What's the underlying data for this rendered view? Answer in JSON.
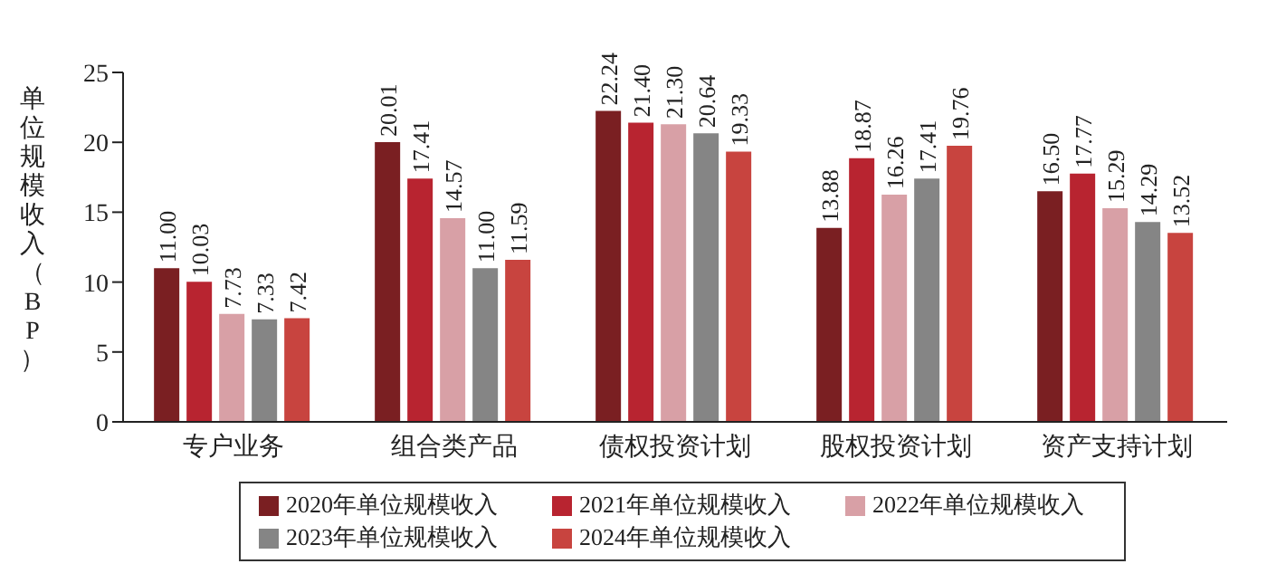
{
  "chart_data": {
    "type": "bar",
    "ylabel": "单位规模收入（BP）",
    "categories": [
      "专户业务",
      "组合类产品",
      "债权投资计划",
      "股权投资计划",
      "资产支持计划"
    ],
    "series": [
      {
        "name": "2020年单位规模收入",
        "color": "#7a1f22",
        "values": [
          11.0,
          20.01,
          22.24,
          13.88,
          16.5
        ],
        "value_labels": [
          "11.00",
          "20.01",
          "22.24",
          "13.88",
          "16.50"
        ]
      },
      {
        "name": "2021年单位规模收入",
        "color": "#b82430",
        "values": [
          10.03,
          17.41,
          21.4,
          18.87,
          17.77
        ],
        "value_labels": [
          "10.03",
          "17.41",
          "21.40",
          "18.87",
          "17.77"
        ]
      },
      {
        "name": "2022年单位规模收入",
        "color": "#d8a0a6",
        "values": [
          7.73,
          14.57,
          21.3,
          16.26,
          15.29
        ],
        "value_labels": [
          "7.73",
          "14.57",
          "21.30",
          "16.26",
          "15.29"
        ]
      },
      {
        "name": "2023年单位规模收入",
        "color": "#858585",
        "values": [
          7.33,
          11.0,
          20.64,
          17.41,
          14.29
        ],
        "value_labels": [
          "7.33",
          "11.00",
          "20.64",
          "17.41",
          "14.29"
        ]
      },
      {
        "name": "2024年单位规模收入",
        "color": "#c8443f",
        "values": [
          7.42,
          11.59,
          19.33,
          19.76,
          13.52
        ],
        "value_labels": [
          "7.42",
          "11.59",
          "19.33",
          "19.76",
          "13.52"
        ]
      }
    ],
    "ylim": [
      0,
      25
    ],
    "yticks": [
      0,
      5,
      10,
      15,
      20,
      25
    ],
    "grid": false,
    "legend": "bottom"
  }
}
